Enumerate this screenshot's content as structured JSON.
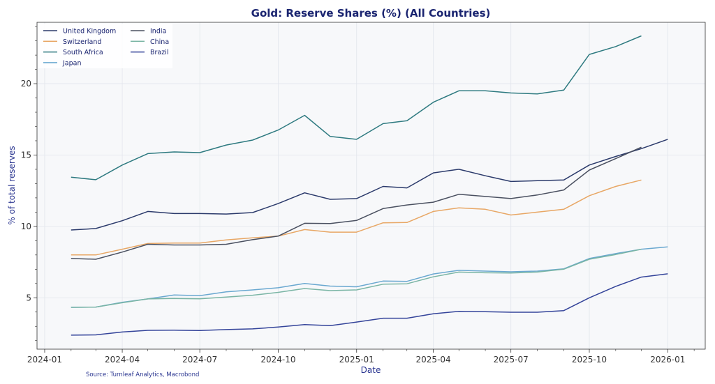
{
  "chart_data": {
    "type": "line",
    "title": "Gold: Reserve Shares (%) (All Countries)",
    "xlabel": "Date",
    "ylabel": "% of total reserves",
    "source": "Source: Turnleaf Analytics, Macrobond",
    "x_ticks": [
      "2024-01",
      "2024-04",
      "2024-07",
      "2024-10",
      "2025-01",
      "2025-04",
      "2025-07",
      "2025-10",
      "2026-01"
    ],
    "y_ticks": [
      5,
      10,
      15,
      20
    ],
    "xlim": [
      "2023-12-23",
      "2026-02-14"
    ],
    "ylim": [
      1.4,
      24.3
    ],
    "grid": true,
    "legend_position": "top-left",
    "x": [
      "2024-02",
      "2024-03",
      "2024-04",
      "2024-05",
      "2024-06",
      "2024-07",
      "2024-08",
      "2024-09",
      "2024-10",
      "2024-11",
      "2024-12",
      "2025-01",
      "2025-02",
      "2025-03",
      "2025-04",
      "2025-05",
      "2025-06",
      "2025-07",
      "2025-08",
      "2025-09",
      "2025-10",
      "2025-11",
      "2025-12",
      "2026-01"
    ],
    "series": [
      {
        "name": "United Kingdom",
        "color": "#2b3a6b",
        "values": [
          9.75,
          9.85,
          10.4,
          11.05,
          10.9,
          10.9,
          10.87,
          10.97,
          11.6,
          12.35,
          11.9,
          11.95,
          12.8,
          12.7,
          13.75,
          14.0,
          13.55,
          13.15,
          13.2,
          13.25,
          14.3,
          14.9,
          15.45,
          16.1
        ]
      },
      {
        "name": "Switzerland",
        "color": "#e8a765",
        "values": [
          8.0,
          8.0,
          8.4,
          8.8,
          8.83,
          8.83,
          9.05,
          9.2,
          9.32,
          9.78,
          9.6,
          9.6,
          10.25,
          10.27,
          11.05,
          11.3,
          11.2,
          10.8,
          11.0,
          11.2,
          12.15,
          12.8,
          13.25,
          null
        ]
      },
      {
        "name": "South Africa",
        "color": "#2e7a80",
        "values": [
          13.45,
          13.27,
          14.3,
          15.1,
          15.22,
          15.17,
          15.7,
          16.05,
          16.75,
          17.78,
          16.3,
          16.1,
          17.2,
          17.4,
          18.7,
          19.5,
          19.5,
          19.35,
          19.28,
          19.55,
          22.05,
          22.6,
          23.35,
          null
        ]
      },
      {
        "name": "Japan",
        "color": "#6aa8d0",
        "values": [
          4.33,
          4.35,
          4.68,
          4.92,
          5.2,
          5.15,
          5.42,
          5.55,
          5.7,
          6.0,
          5.82,
          5.77,
          6.17,
          6.15,
          6.67,
          6.92,
          6.87,
          6.82,
          6.87,
          7.03,
          7.75,
          8.1,
          8.4,
          8.57
        ]
      },
      {
        "name": "India",
        "color": "#4a5060",
        "values": [
          7.75,
          7.7,
          8.2,
          8.75,
          8.7,
          8.7,
          8.75,
          9.07,
          9.32,
          10.22,
          10.2,
          10.42,
          11.25,
          11.5,
          11.7,
          12.25,
          12.1,
          11.95,
          12.2,
          12.55,
          13.95,
          14.75,
          15.55,
          null
        ]
      },
      {
        "name": "China",
        "color": "#7ab5a5",
        "values": [
          4.33,
          4.35,
          4.65,
          4.92,
          4.95,
          4.93,
          5.05,
          5.18,
          5.38,
          5.65,
          5.5,
          5.55,
          5.95,
          5.98,
          6.47,
          6.8,
          6.75,
          6.73,
          6.8,
          7.0,
          7.7,
          8.03,
          8.4,
          null
        ]
      },
      {
        "name": "Brazil",
        "color": "#34449a",
        "values": [
          2.38,
          2.4,
          2.6,
          2.72,
          2.73,
          2.71,
          2.77,
          2.82,
          2.95,
          3.12,
          3.05,
          3.3,
          3.57,
          3.57,
          3.88,
          4.05,
          4.02,
          3.99,
          3.99,
          4.1,
          5.0,
          5.8,
          6.45,
          6.68
        ]
      }
    ]
  },
  "colors": {
    "plot_background": "#f7f8fa",
    "grid": "#e2e5ec",
    "title": "#1a2470",
    "axis_label": "#2a3590"
  }
}
